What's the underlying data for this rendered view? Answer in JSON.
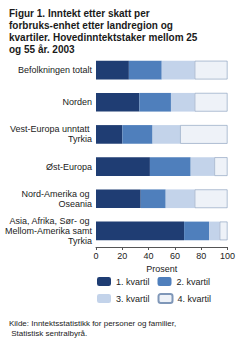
{
  "chart_data": {
    "type": "bar",
    "title": "Figur 1. Inntekt etter skatt per forbruks-enhet etter landregion og kvartiler. Hovedinntektstaker mellom 25 og 55 år. 2003",
    "source": "Kilde: Inntektsstatistikk for personer og familier, Statistisk sentralbyrå.",
    "x_label": "Prosent",
    "orientation": "horizontal",
    "stacked": true,
    "grid": false,
    "legend": "bottom",
    "categories": [
      "Befolkningen totalt",
      "Norden",
      "Vest-Europa unntatt Tyrkia",
      "Øst-Europa",
      "Nord-Amerika og Oseania",
      "Asia, Afrika, Sør- og Mellom-Amerika samt Tyrkia"
    ],
    "series": [
      {
        "name": "1. kvartil",
        "color": "#1f3d73",
        "values": [
          25,
          33,
          20,
          41,
          34,
          67
        ]
      },
      {
        "name": "2. kvartil",
        "color": "#4f7fbc",
        "values": [
          25,
          24,
          23,
          31,
          19,
          19
        ]
      },
      {
        "name": "3. kvartil",
        "color": "#c3d3ea",
        "values": [
          25,
          18,
          21,
          18,
          22,
          8
        ]
      },
      {
        "name": "4. kvartil",
        "color": "#eef2f8",
        "values": [
          25,
          25,
          36,
          10,
          25,
          6
        ]
      }
    ],
    "xlim": [
      0,
      100
    ],
    "xticks": [
      0,
      20,
      40,
      60,
      80,
      100
    ]
  }
}
